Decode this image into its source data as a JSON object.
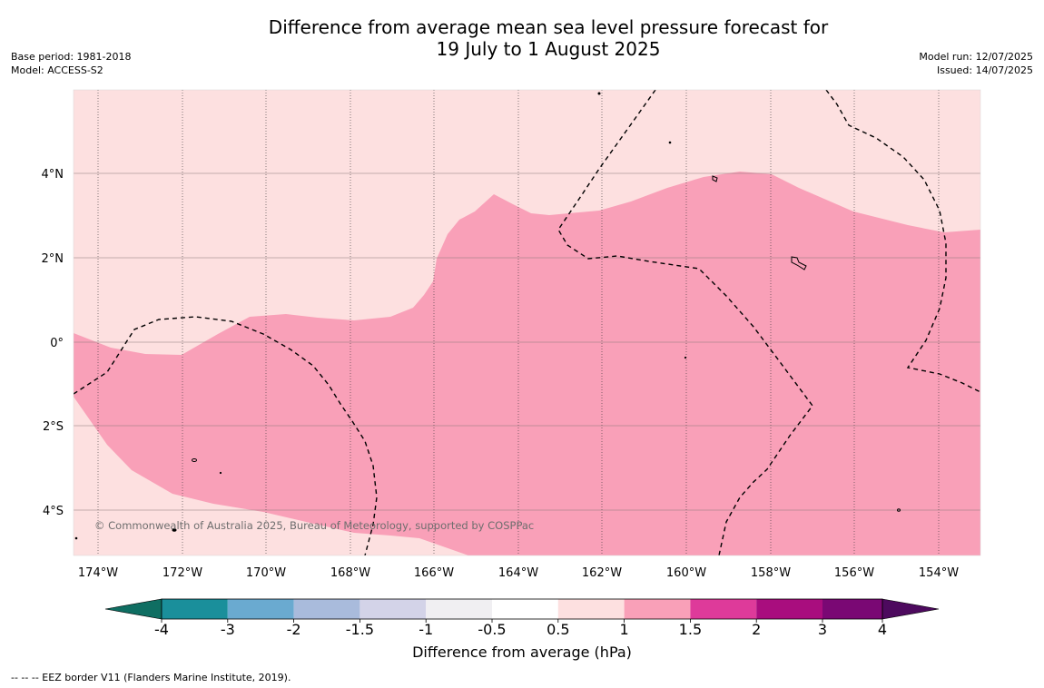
{
  "title_line1": "Difference from average mean sea level pressure forecast for",
  "title_line2": "19 July to 1 August 2025",
  "meta_left": {
    "base_period": "Base period: 1981-2018",
    "model": "Model: ACCESS-S2"
  },
  "meta_right": {
    "model_run": "Model run: 12/07/2025",
    "issued": "Issued: 14/07/2025"
  },
  "lat_labels": [
    "4°N",
    "2°N",
    "0°",
    "2°S",
    "4°S"
  ],
  "lon_labels": [
    "174°W",
    "172°W",
    "170°W",
    "168°W",
    "166°W",
    "164°W",
    "162°W",
    "160°W",
    "158°W",
    "156°W",
    "154°W"
  ],
  "copyright": "© Commonwealth of Australia 2025, Bureau of Meteorology, supported by COSPPac",
  "colorbar": {
    "title": "Difference from average (hPa)",
    "tick_labels": [
      "-4",
      "-3",
      "-2",
      "-1.5",
      "-1",
      "-0.5",
      "0.5",
      "1",
      "1.5",
      "2",
      "3",
      "4"
    ],
    "colors": [
      "#0f6e62",
      "#1a8f9b",
      "#6aaad0",
      "#a9bbdc",
      "#d3d3e8",
      "#f0eff2",
      "#ffffff",
      "#fde0e0",
      "#f9a0b8",
      "#de3a9a",
      "#a90d7e",
      "#7a0874",
      "#4d0a5e"
    ]
  },
  "map_colors": {
    "light_band": "#fde0e0",
    "pink_band": "#f9a0b8"
  },
  "footnote": "-- -- -- EEZ border V11 (Flanders Marine Institute, 2019)."
}
